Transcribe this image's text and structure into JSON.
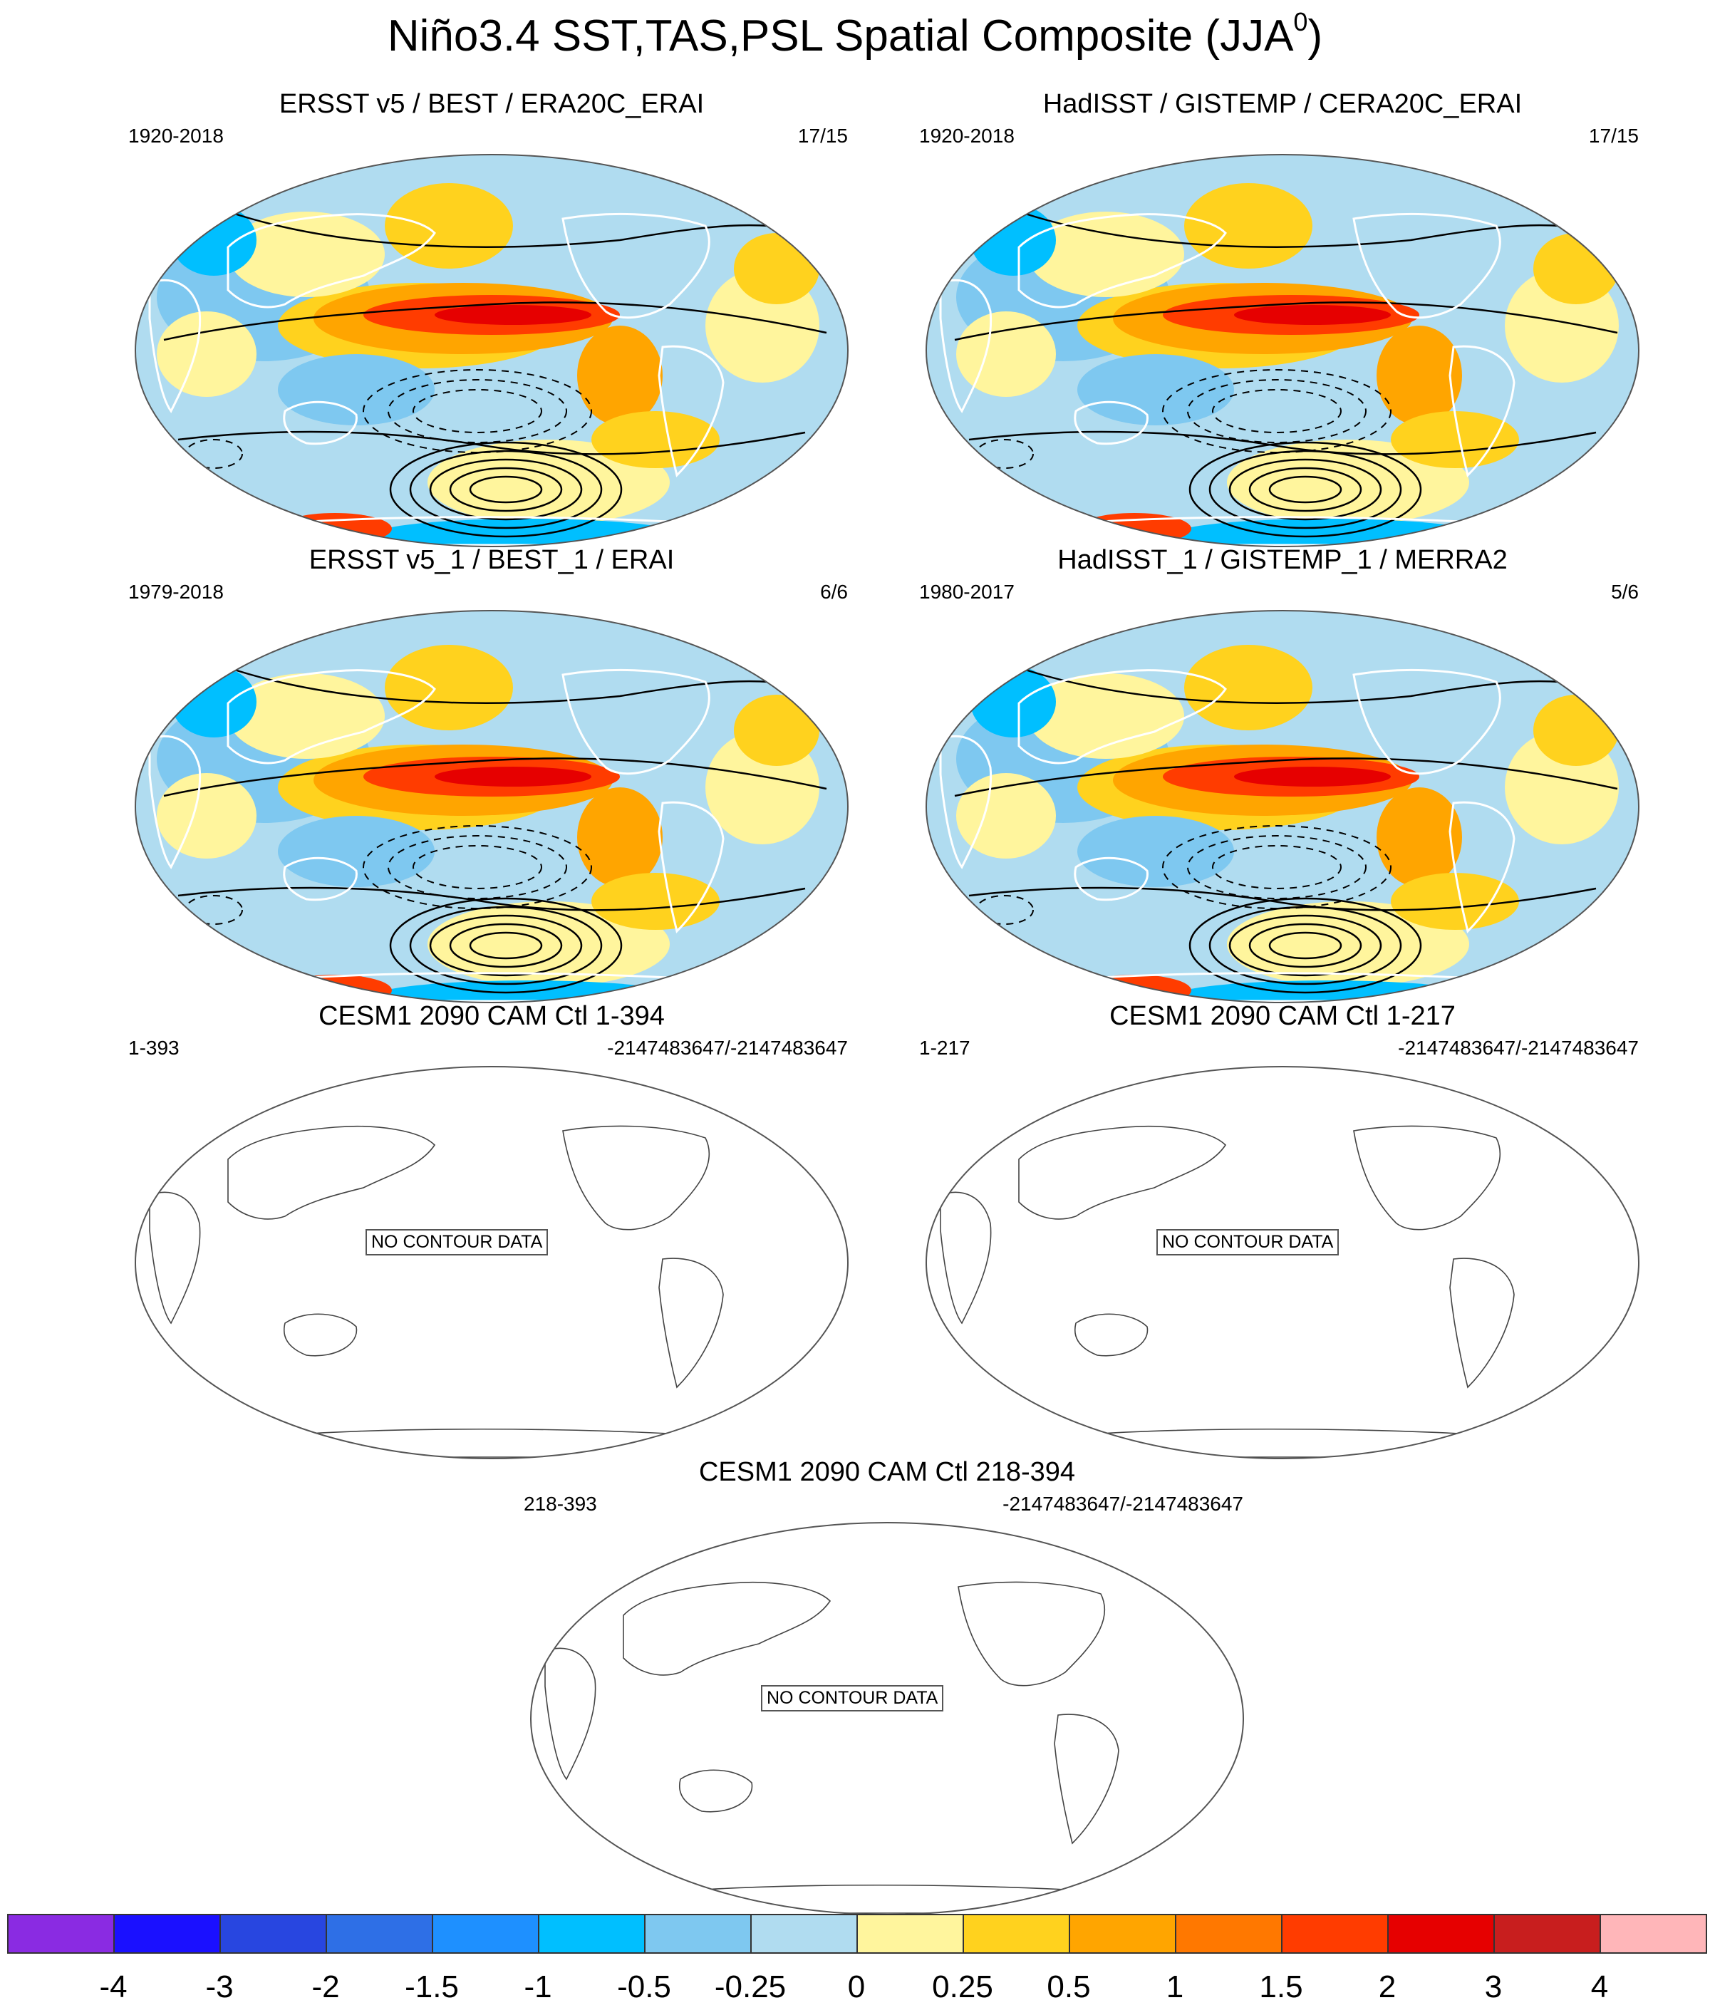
{
  "title": {
    "main": "Niño3.4 SST,TAS,PSL Spatial Composite (JJA",
    "sup": "0",
    "close": ")"
  },
  "panels": [
    {
      "title": "ERSST v5 / BEST / ERA20C_ERAI",
      "left": "1920-2018",
      "right": "17/15",
      "filled": true,
      "nodata": ""
    },
    {
      "title": "HadISST / GISTEMP / CERA20C_ERAI",
      "left": "1920-2018",
      "right": "17/15",
      "filled": true,
      "nodata": ""
    },
    {
      "title": "ERSST v5_1 / BEST_1 / ERAI",
      "left": "1979-2018",
      "right": "6/6",
      "filled": true,
      "nodata": ""
    },
    {
      "title": "HadISST_1 / GISTEMP_1 / MERRA2",
      "left": "1980-2017",
      "right": "5/6",
      "filled": true,
      "nodata": ""
    },
    {
      "title": "CESM1 2090 CAM Ctl 1-394",
      "left": "1-393",
      "right": "-2147483647/-2147483647",
      "filled": false,
      "nodata": "NO CONTOUR DATA"
    },
    {
      "title": "CESM1 2090 CAM Ctl 1-217",
      "left": "1-217",
      "right": "-2147483647/-2147483647",
      "filled": false,
      "nodata": "NO CONTOUR DATA"
    },
    {
      "title": "CESM1 2090 CAM Ctl 218-394",
      "left": "218-393",
      "right": "-2147483647/-2147483647",
      "filled": false,
      "nodata": "NO CONTOUR DATA"
    }
  ],
  "colorbar": {
    "colors": [
      "#8a2be2",
      "#1a10ff",
      "#2846e0",
      "#2e6fe6",
      "#1e90ff",
      "#00bfff",
      "#7ec8f0",
      "#b0dcf0",
      "#fff59d",
      "#ffd21e",
      "#ffa500",
      "#ff7800",
      "#ff3c00",
      "#e60000",
      "#c81e1e",
      "#ffb6b9"
    ],
    "labels": [
      "-4",
      "-3",
      "-2",
      "-1.5",
      "-1",
      "-0.5",
      "-0.25",
      "0",
      "0.25",
      "0.5",
      "1",
      "1.5",
      "2",
      "3",
      "4"
    ]
  }
}
